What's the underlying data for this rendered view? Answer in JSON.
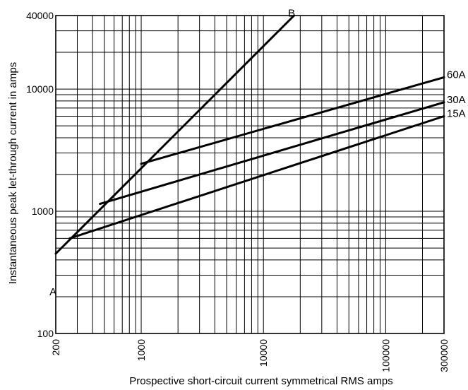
{
  "chart_data": {
    "type": "line",
    "x_scale": "log",
    "y_scale": "log",
    "xlim": [
      200,
      300000
    ],
    "ylim": [
      100,
      40000
    ],
    "grid": true,
    "xlabel": "Prospective short-circuit current symmetrical RMS amps",
    "ylabel": "Instantaneous peak let-through current in amps",
    "x_ticks": [
      {
        "value": 200,
        "label": "200"
      },
      {
        "value": 1000,
        "label": "1000"
      },
      {
        "value": 10000,
        "label": "10000"
      },
      {
        "value": 100000,
        "label": "100000"
      },
      {
        "value": 300000,
        "label": "300000"
      }
    ],
    "y_ticks": [
      {
        "value": 100,
        "label": "100"
      },
      {
        "value": 1000,
        "label": "1000"
      },
      {
        "value": 10000,
        "label": "10000"
      },
      {
        "value": 40000,
        "label": "40000"
      }
    ],
    "x_grid_values": [
      200,
      300,
      400,
      500,
      600,
      700,
      800,
      900,
      1000,
      2000,
      3000,
      4000,
      5000,
      6000,
      7000,
      8000,
      9000,
      10000,
      20000,
      30000,
      40000,
      50000,
      60000,
      70000,
      80000,
      90000,
      100000,
      200000,
      300000
    ],
    "y_grid_values": [
      100,
      200,
      300,
      400,
      500,
      600,
      700,
      800,
      900,
      1000,
      2000,
      3000,
      4000,
      5000,
      6000,
      7000,
      8000,
      9000,
      10000,
      20000,
      30000,
      40000
    ],
    "series": [
      {
        "name": "B",
        "x": [
          200,
          17800
        ],
        "y": [
          450,
          40000
        ]
      },
      {
        "name": "60A",
        "x": [
          1000,
          300000
        ],
        "y": [
          2450,
          12500
        ]
      },
      {
        "name": "30A",
        "x": [
          460,
          300000
        ],
        "y": [
          1150,
          7800
        ]
      },
      {
        "name": "15A",
        "x": [
          260,
          300000
        ],
        "y": [
          600,
          6000
        ]
      }
    ],
    "annotations": [
      {
        "text": "A",
        "x": 190,
        "y": 220
      },
      {
        "text": "B",
        "x": 17000,
        "y": 42000
      }
    ]
  }
}
